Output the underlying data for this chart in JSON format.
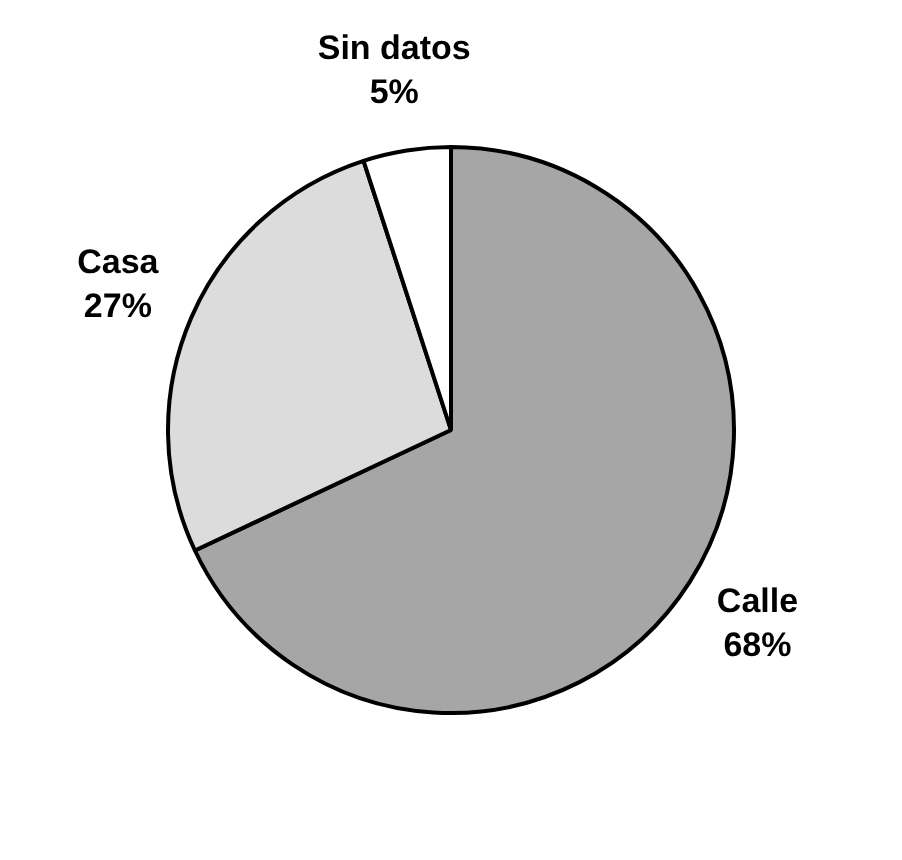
{
  "chart_data": {
    "type": "pie",
    "categories": [
      "Calle",
      "Casa",
      "Sin datos"
    ],
    "values": [
      68,
      27,
      5
    ],
    "colors": [
      "#a6a6a6",
      "#dcdcdc",
      "#ffffff"
    ],
    "value_labels": [
      "68%",
      "27%",
      "5%"
    ],
    "legend": false
  }
}
